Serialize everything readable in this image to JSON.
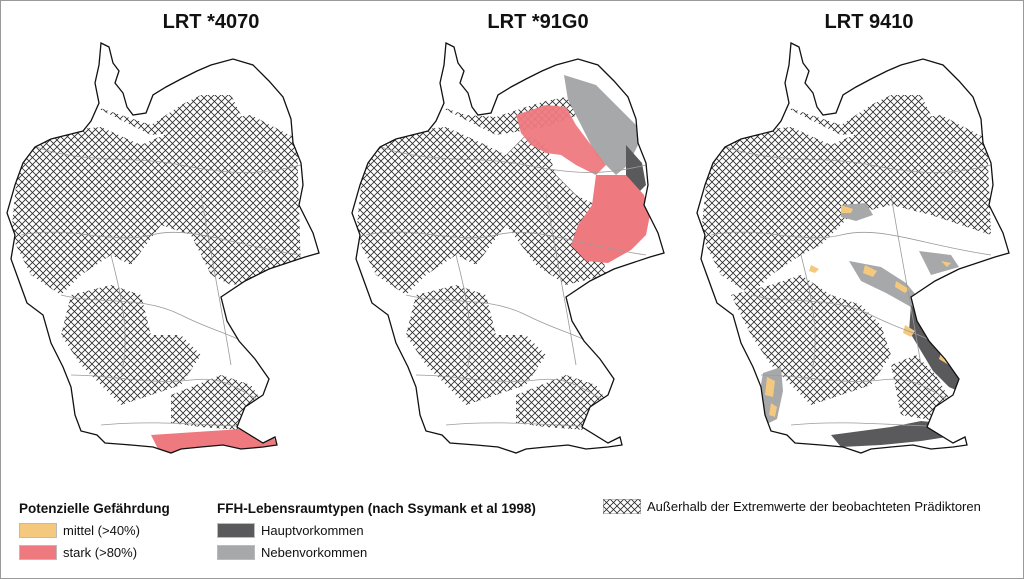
{
  "maps": [
    {
      "title": "LRT *4070"
    },
    {
      "title": "LRT *91G0"
    },
    {
      "title": "LRT 9410"
    }
  ],
  "legend": {
    "threat": {
      "heading": "Potenzielle Gefährdung",
      "items": [
        {
          "label": "mittel (>40%)",
          "color": "#f5c97d"
        },
        {
          "label": "stark (>80%)",
          "color": "#ee7a80"
        }
      ]
    },
    "habitat": {
      "heading": "FFH-Lebensraumtypen (nach Ssymank et al 1998)",
      "items": [
        {
          "label": "Hauptvorkommen",
          "color": "#5a5a5c"
        },
        {
          "label": "Nebenvorkommen",
          "color": "#a7a8aa"
        }
      ]
    },
    "hatch": {
      "label": "Außerhalb der Extremwerte der beobachteten Prädiktoren"
    }
  },
  "colors": {
    "outline": "#111111",
    "region_lines": "#9b9b9b",
    "hatch": "#2b2b2b"
  }
}
